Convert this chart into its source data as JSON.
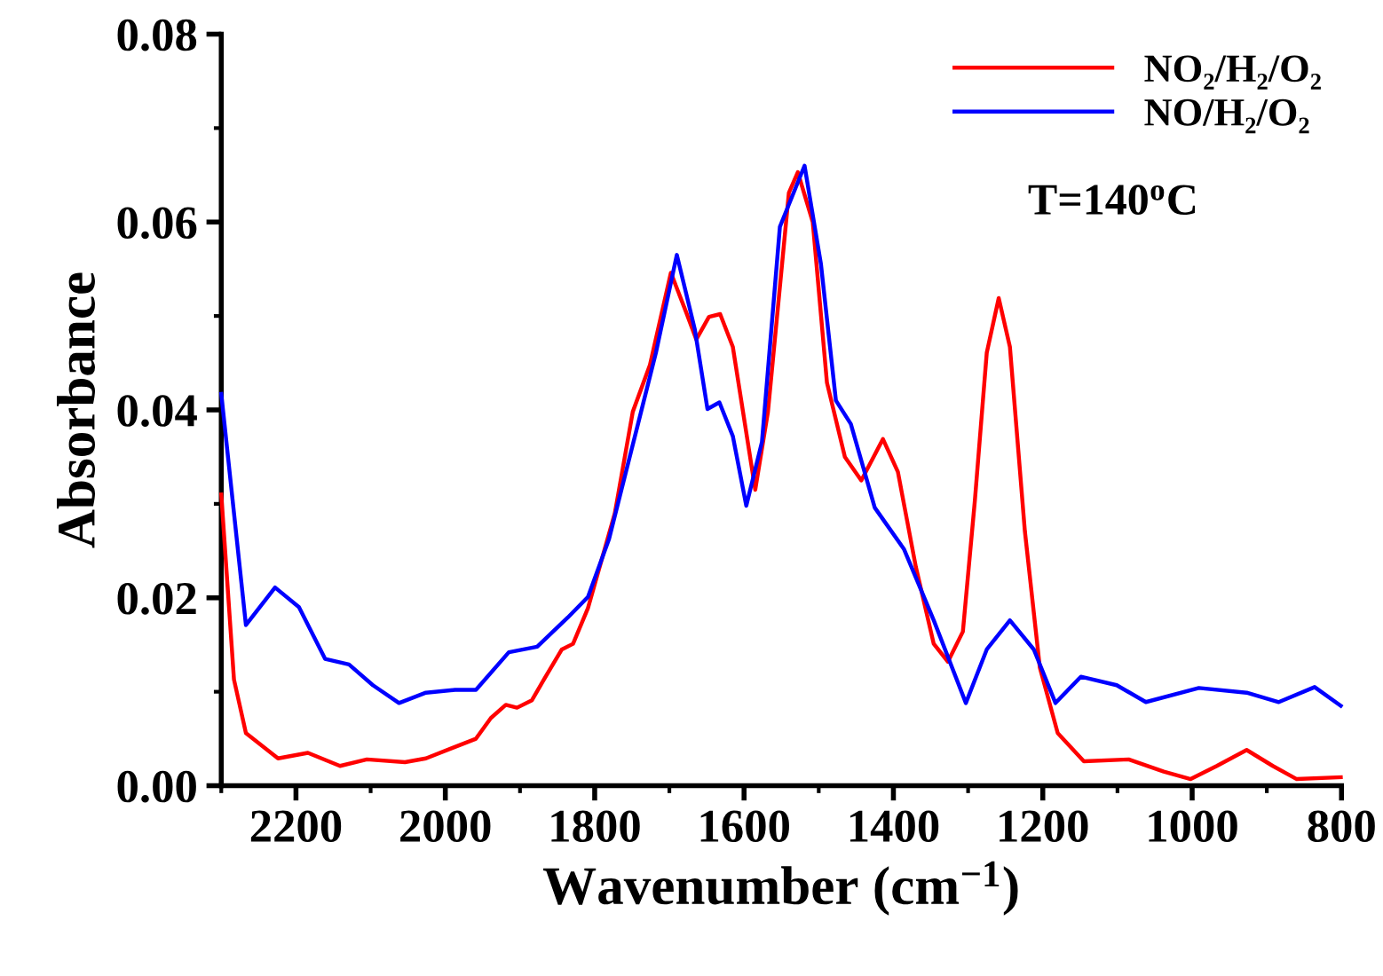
{
  "chart_data": {
    "type": "line",
    "xlabel": "Wavenumber (cm$^{−1}$)",
    "ylabel": "Absorbance",
    "annotations": [
      "T=140$^{o}$C"
    ],
    "xlim": [
      2300,
      800
    ],
    "xticks": [
      2200,
      2000,
      1800,
      1600,
      1400,
      1200,
      1000,
      800
    ],
    "ylim": [
      0,
      0.08
    ],
    "yticks": [
      {
        "value": 0,
        "label": "0.00"
      },
      {
        "value": 0.02,
        "label": "0.02"
      },
      {
        "value": 0.04,
        "label": "0.04"
      },
      {
        "value": 0.06,
        "label": "0.06"
      },
      {
        "value": 0.08,
        "label": "0.08"
      }
    ],
    "grid": false,
    "legend": "top right",
    "marker": "none",
    "line_style": "solid",
    "series": [
      {
        "name": "NO₂/H₂/O₂",
        "color": "#ff0000",
        "x": [
          2300,
          2283,
          2267,
          2224,
          2184,
          2141,
          2105,
          2054,
          2026,
          1991,
          1959,
          1939,
          1919,
          1904,
          1884,
          1868,
          1844,
          1829,
          1809,
          1773,
          1749,
          1726,
          1698,
          1678,
          1664,
          1647,
          1632,
          1615,
          1585,
          1568,
          1540,
          1528,
          1508,
          1489,
          1465,
          1443,
          1414,
          1394,
          1370,
          1346,
          1327,
          1307,
          1291,
          1275,
          1259,
          1244,
          1224,
          1204,
          1180,
          1145,
          1085,
          1038,
          1002,
          967,
          927,
          892,
          860,
          801
        ],
        "values": [
          0.031,
          0.0113,
          0.0056,
          0.0029,
          0.0035,
          0.0021,
          0.0028,
          0.0025,
          0.0029,
          0.004,
          0.005,
          0.0072,
          0.0086,
          0.0083,
          0.0091,
          0.0113,
          0.0145,
          0.0151,
          0.0189,
          0.029,
          0.0398,
          0.0448,
          0.0546,
          0.0505,
          0.0475,
          0.0499,
          0.0502,
          0.0467,
          0.0315,
          0.0398,
          0.0631,
          0.0653,
          0.06,
          0.0429,
          0.035,
          0.0325,
          0.0369,
          0.0334,
          0.0233,
          0.0151,
          0.0132,
          0.0164,
          0.0303,
          0.0461,
          0.0519,
          0.0467,
          0.0271,
          0.0126,
          0.0056,
          0.0026,
          0.0028,
          0.0015,
          0.0007,
          0.0021,
          0.0038,
          0.0021,
          0.0007,
          0.0009
        ]
      },
      {
        "name": "NO/H₂/O₂",
        "color": "#0000ff",
        "x": [
          2300,
          2267,
          2228,
          2196,
          2161,
          2129,
          2097,
          2062,
          2026,
          1987,
          1959,
          1915,
          1877,
          1836,
          1809,
          1781,
          1742,
          1718,
          1690,
          1666,
          1649,
          1633,
          1615,
          1597,
          1576,
          1552,
          1519,
          1497,
          1477,
          1457,
          1425,
          1386,
          1346,
          1303,
          1275,
          1244,
          1212,
          1183,
          1149,
          1101,
          1062,
          991,
          927,
          884,
          836,
          801
        ],
        "values": [
          0.0417,
          0.0171,
          0.0211,
          0.019,
          0.0135,
          0.0129,
          0.0107,
          0.0088,
          0.0099,
          0.0102,
          0.0102,
          0.0142,
          0.0148,
          0.0179,
          0.0201,
          0.0262,
          0.0385,
          0.0461,
          0.0565,
          0.0486,
          0.0401,
          0.0408,
          0.0372,
          0.0298,
          0.0366,
          0.0595,
          0.066,
          0.0555,
          0.041,
          0.0385,
          0.0296,
          0.0252,
          0.0176,
          0.0088,
          0.0145,
          0.0176,
          0.0145,
          0.0088,
          0.0116,
          0.0107,
          0.0089,
          0.0104,
          0.0099,
          0.0089,
          0.0105,
          0.0085
        ]
      }
    ]
  }
}
